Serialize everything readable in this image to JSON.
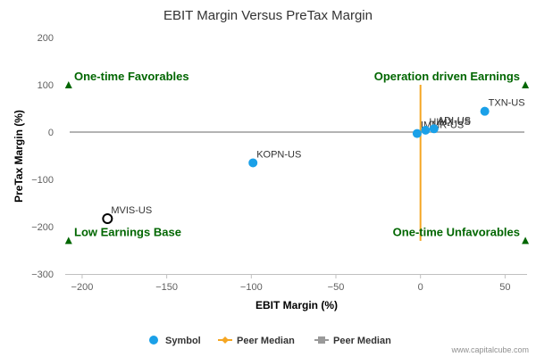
{
  "chart_data": {
    "type": "scatter",
    "title": "EBIT Margin Versus PreTax Margin",
    "xlabel": "EBIT Margin (%)",
    "ylabel": "PreTax Margin (%)",
    "xlim": [
      -210,
      63
    ],
    "ylim": [
      -300,
      200
    ],
    "x_ticks": [
      -200,
      -150,
      -100,
      -50,
      0,
      50
    ],
    "y_ticks": [
      200,
      100,
      0,
      -100,
      -200,
      -300
    ],
    "x_tick_labels": [
      "−200",
      "−150",
      "−100",
      "−50",
      "0",
      "50"
    ],
    "y_tick_labels": [
      "200",
      "100",
      "0",
      "−100",
      "−200",
      "−300"
    ],
    "grid": false,
    "legend_position": "bottom",
    "points": [
      {
        "label": "MVIS-US",
        "x": -185,
        "y": -183,
        "style": "hollow"
      },
      {
        "label": "KOPN-US",
        "x": -99,
        "y": -65,
        "style": "filled"
      },
      {
        "label": "IMMR-US",
        "x": -2,
        "y": -3,
        "style": "filled"
      },
      {
        "label": "HIMX-US",
        "x": 3,
        "y": 4,
        "style": "filled"
      },
      {
        "label": "ADI-US",
        "x": 8,
        "y": 7,
        "style": "filled"
      },
      {
        "label": "TXN-US",
        "x": 38,
        "y": 44,
        "style": "filled"
      }
    ],
    "peer_median_x": 0,
    "peer_median_y": 0,
    "quadrant_labels": [
      {
        "text": "One-time Favorables",
        "corner": "top-left"
      },
      {
        "text": "Operation driven Earnings",
        "corner": "top-right"
      },
      {
        "text": "Low Earnings Base",
        "corner": "bottom-left"
      },
      {
        "text": "One-time Unfavorables",
        "corner": "bottom-right"
      }
    ],
    "legend": [
      {
        "label": "Symbol",
        "marker": "circle"
      },
      {
        "label": "Peer Median",
        "marker": "diamond-line"
      },
      {
        "label": "Peer Median",
        "marker": "square-line"
      }
    ],
    "credit": "www.capitalcube.com"
  },
  "colors": {
    "point": "#1aa0e8",
    "point_hollow_stroke": "#000000",
    "vertical_median": "#f5a623",
    "horizontal_median": "#9a9a9a",
    "quadrant_text": "#006600",
    "axis": "#c0c0c0"
  }
}
